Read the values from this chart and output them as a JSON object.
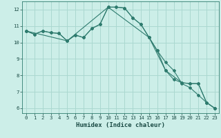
{
  "xlabel": "Humidex (Indice chaleur)",
  "background_color": "#cceee8",
  "grid_color": "#aad8d0",
  "line_color": "#2e7b6e",
  "xlim": [
    -0.5,
    23.5
  ],
  "ylim": [
    5.7,
    12.5
  ],
  "yticks": [
    6,
    7,
    8,
    9,
    10,
    11,
    12
  ],
  "xticks": [
    0,
    1,
    2,
    3,
    4,
    5,
    6,
    7,
    8,
    9,
    10,
    11,
    12,
    13,
    14,
    15,
    16,
    17,
    18,
    19,
    20,
    21,
    22,
    23
  ],
  "line1_x": [
    0,
    1,
    2,
    3,
    4,
    5,
    6,
    7,
    8,
    9,
    10,
    11,
    12,
    13,
    14,
    15,
    16,
    17,
    18,
    19,
    20,
    21,
    22,
    23
  ],
  "line1_y": [
    10.7,
    10.5,
    10.7,
    10.6,
    10.55,
    10.1,
    10.45,
    10.3,
    10.85,
    11.1,
    12.15,
    12.15,
    12.1,
    11.5,
    11.1,
    10.3,
    9.5,
    8.8,
    8.3,
    7.5,
    7.25,
    6.8,
    6.35,
    6.0
  ],
  "line2_x": [
    0,
    1,
    2,
    3,
    4,
    5,
    6,
    7,
    8,
    9,
    10,
    11,
    12,
    13,
    14,
    15,
    16,
    17,
    18,
    19,
    20,
    21,
    22,
    23
  ],
  "line2_y": [
    10.7,
    10.5,
    10.7,
    10.6,
    10.55,
    10.1,
    10.45,
    10.3,
    10.85,
    11.1,
    12.15,
    12.15,
    12.1,
    11.5,
    11.1,
    10.3,
    9.5,
    8.3,
    7.75,
    7.55,
    7.5,
    7.5,
    6.35,
    6.0
  ],
  "line3_x": [
    0,
    5,
    10,
    15,
    17,
    19,
    20,
    21,
    22,
    23
  ],
  "line3_y": [
    10.7,
    10.1,
    12.15,
    10.3,
    8.3,
    7.55,
    7.5,
    7.5,
    6.35,
    6.0
  ]
}
